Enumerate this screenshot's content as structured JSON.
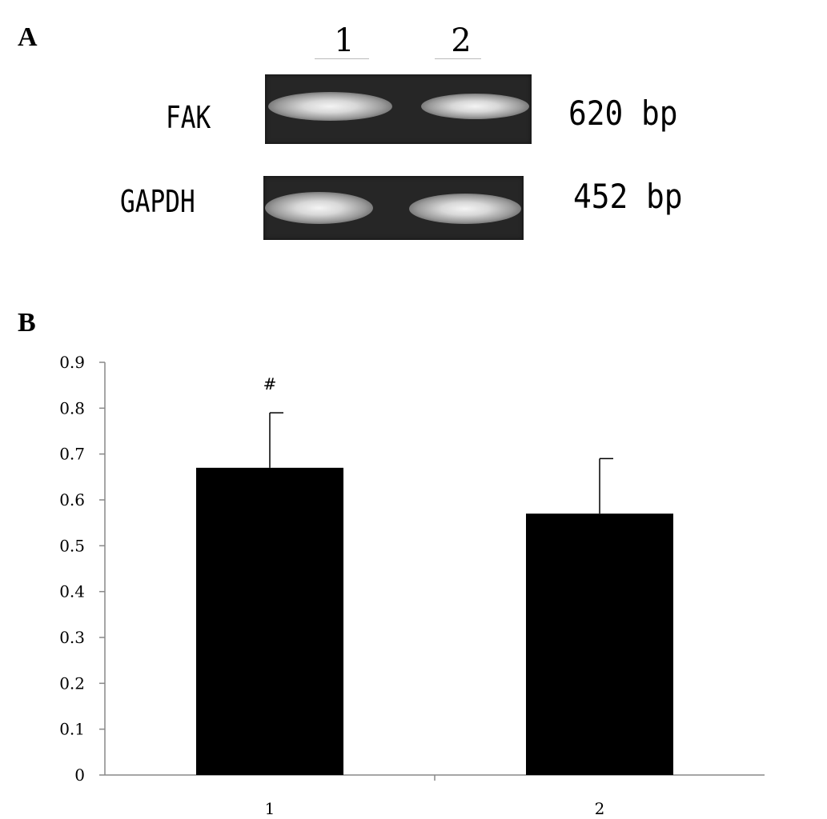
{
  "panel_a": {
    "label": "A",
    "lanes": [
      "1",
      "2"
    ],
    "rows": [
      {
        "gene": "FAK",
        "size": "620",
        "unit": "bp"
      },
      {
        "gene": "GAPDH",
        "size": "452",
        "unit": "bp"
      }
    ]
  },
  "panel_b": {
    "label": "B"
  },
  "chart_data": {
    "type": "bar",
    "title": "",
    "xlabel": "",
    "ylabel": "",
    "categories": [
      "1",
      "2"
    ],
    "values": [
      0.67,
      0.57
    ],
    "errors": [
      0.12,
      0.12
    ],
    "annotations": [
      {
        "category": "1",
        "text": "#"
      }
    ],
    "ylim": [
      0,
      0.9
    ],
    "yticks": [
      "0",
      "0.1",
      "0.2",
      "0.3",
      "0.4",
      "0.5",
      "0.6",
      "0.7",
      "0.8",
      "0.9"
    ],
    "bar_color": "#000000",
    "grid": false
  }
}
